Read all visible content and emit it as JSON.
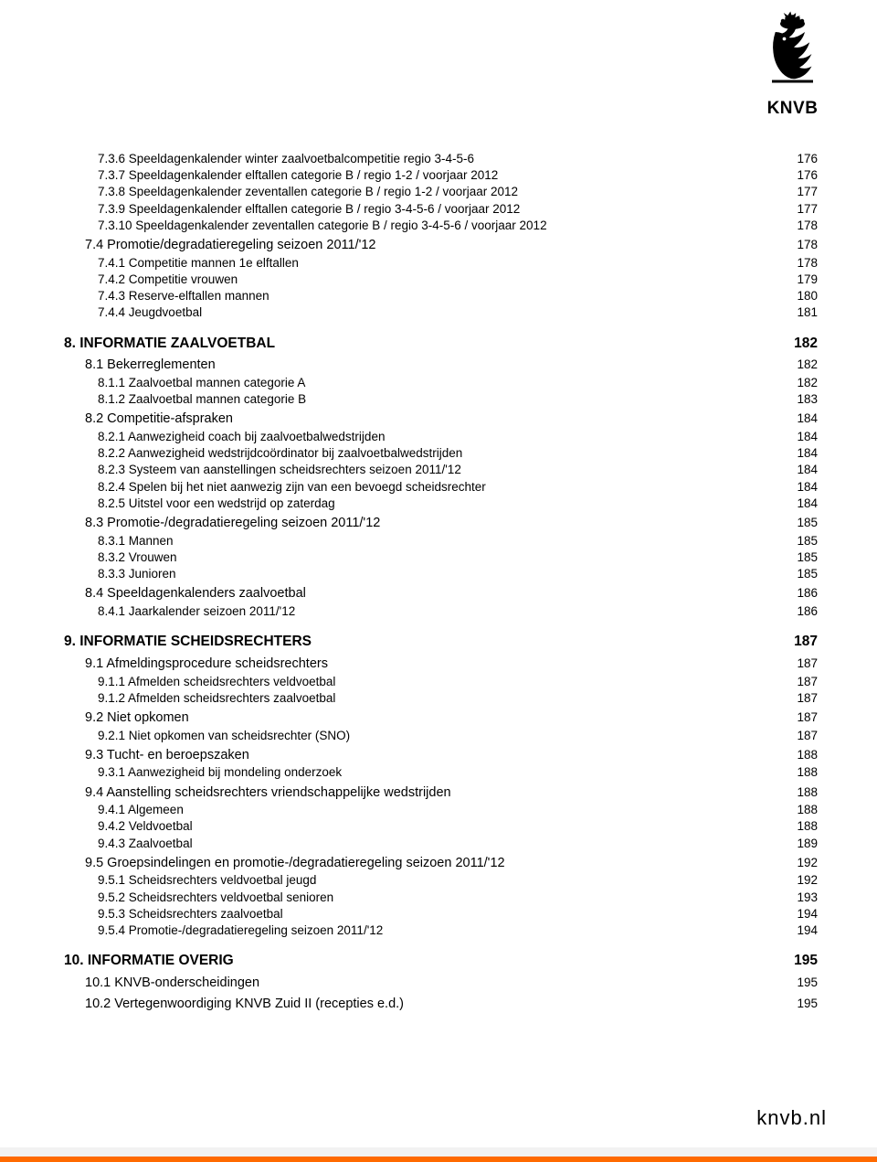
{
  "logo": {
    "text": "KNVB"
  },
  "footer": {
    "url": "knvb.nl"
  },
  "colors": {
    "accent": "#ff6a00",
    "text": "#000000",
    "bg": "#ffffff"
  },
  "typography": {
    "body_font": "Arial",
    "body_size_pt": 10
  },
  "entries": [
    {
      "level": 3,
      "label": "7.3.6 Speeldagenkalender winter zaalvoetbalcompetitie regio 3-4-5-6",
      "page": "176"
    },
    {
      "level": 3,
      "label": "7.3.7 Speeldagenkalender elftallen categorie B / regio 1-2 / voorjaar 2012",
      "page": "176"
    },
    {
      "level": 3,
      "label": "7.3.8 Speeldagenkalender zeventallen categorie B / regio 1-2 / voorjaar 2012",
      "page": "177"
    },
    {
      "level": 3,
      "label": "7.3.9 Speeldagenkalender elftallen categorie B / regio 3-4-5-6 / voorjaar 2012",
      "page": "177"
    },
    {
      "level": 3,
      "label": "7.3.10 Speeldagenkalender zeventallen categorie B / regio 3-4-5-6 / voorjaar 2012",
      "page": "178"
    },
    {
      "level": 2,
      "label": "7.4 Promotie/degradatieregeling seizoen 2011/'12",
      "page": "178"
    },
    {
      "level": 3,
      "label": "7.4.1 Competitie mannen 1e elftallen",
      "page": "178"
    },
    {
      "level": 3,
      "label": "7.4.2 Competitie vrouwen",
      "page": "179"
    },
    {
      "level": 3,
      "label": "7.4.3 Reserve-elftallen mannen",
      "page": "180"
    },
    {
      "level": 3,
      "label": "7.4.4 Jeugdvoetbal",
      "page": "181"
    },
    {
      "level": 1,
      "label": "8. INFORMATIE ZAALVOETBAL",
      "page": "182"
    },
    {
      "level": 2,
      "label": "8.1 Bekerreglementen",
      "page": "182"
    },
    {
      "level": 3,
      "label": "8.1.1 Zaalvoetbal mannen categorie A",
      "page": "182"
    },
    {
      "level": 3,
      "label": "8.1.2 Zaalvoetbal mannen categorie B",
      "page": "183"
    },
    {
      "level": 2,
      "label": "8.2 Competitie-afspraken",
      "page": "184"
    },
    {
      "level": 3,
      "label": "8.2.1 Aanwezigheid coach bij zaalvoetbalwedstrijden",
      "page": "184"
    },
    {
      "level": 3,
      "label": "8.2.2 Aanwezigheid wedstrijdcoördinator bij zaalvoetbalwedstrijden",
      "page": "184"
    },
    {
      "level": 3,
      "label": "8.2.3 Systeem van aanstellingen scheidsrechters seizoen 2011/'12",
      "page": "184"
    },
    {
      "level": 3,
      "label": "8.2.4 Spelen bij het niet aanwezig zijn van een bevoegd scheidsrechter",
      "page": "184"
    },
    {
      "level": 3,
      "label": "8.2.5 Uitstel voor een wedstrijd op zaterdag",
      "page": "184"
    },
    {
      "level": 2,
      "label": "8.3 Promotie-/degradatieregeling seizoen 2011/'12",
      "page": "185"
    },
    {
      "level": 3,
      "label": "8.3.1  Mannen",
      "page": "185"
    },
    {
      "level": 3,
      "label": "8.3.2  Vrouwen",
      "page": "185"
    },
    {
      "level": 3,
      "label": "8.3.3  Junioren",
      "page": "185"
    },
    {
      "level": 2,
      "label": "8.4 Speeldagenkalenders zaalvoetbal",
      "page": "186"
    },
    {
      "level": 3,
      "label": "8.4.1 Jaarkalender seizoen 2011/'12",
      "page": "186"
    },
    {
      "level": 1,
      "label": "9. INFORMATIE SCHEIDSRECHTERS",
      "page": "187"
    },
    {
      "level": 2,
      "label": "9.1 Afmeldingsprocedure scheidsrechters",
      "page": "187"
    },
    {
      "level": 3,
      "label": "9.1.1 Afmelden scheidsrechters veldvoetbal",
      "page": "187"
    },
    {
      "level": 3,
      "label": "9.1.2  Afmelden scheidsrechters zaalvoetbal",
      "page": "187"
    },
    {
      "level": 2,
      "label": "9.2 Niet opkomen",
      "page": "187"
    },
    {
      "level": 3,
      "label": "9.2.1 Niet opkomen van scheidsrechter (SNO)",
      "page": "187"
    },
    {
      "level": 2,
      "label": "9.3 Tucht- en beroepszaken",
      "page": "188"
    },
    {
      "level": 3,
      "label": "9.3.1 Aanwezigheid bij mondeling onderzoek",
      "page": "188"
    },
    {
      "level": 2,
      "label": "9.4 Aanstelling scheidsrechters vriendschappelijke wedstrijden",
      "page": "188"
    },
    {
      "level": 3,
      "label": "9.4.1 Algemeen",
      "page": "188"
    },
    {
      "level": 3,
      "label": "9.4.2 Veldvoetbal",
      "page": "188"
    },
    {
      "level": 3,
      "label": "9.4.3 Zaalvoetbal",
      "page": "189"
    },
    {
      "level": 2,
      "label": "9.5 Groepsindelingen en promotie-/degradatieregeling seizoen 2011/'12",
      "page": "192"
    },
    {
      "level": 3,
      "label": "9.5.1 Scheidsrechters veldvoetbal  jeugd",
      "page": "192"
    },
    {
      "level": 3,
      "label": "9.5.2 Scheidsrechters veldvoetbal  senioren",
      "page": "193"
    },
    {
      "level": 3,
      "label": "9.5.3 Scheidsrechters zaalvoetbal",
      "page": "194"
    },
    {
      "level": 3,
      "label": "9.5.4 Promotie-/degradatieregeling seizoen 2011/'12",
      "page": "194"
    },
    {
      "level": 1,
      "label": "10. INFORMATIE OVERIG",
      "page": "195"
    },
    {
      "level": 2,
      "label": "10.1 KNVB-onderscheidingen",
      "page": "195"
    },
    {
      "level": 2,
      "label": "10.2 Vertegenwoordiging KNVB Zuid II (recepties e.d.)",
      "page": "195"
    }
  ]
}
